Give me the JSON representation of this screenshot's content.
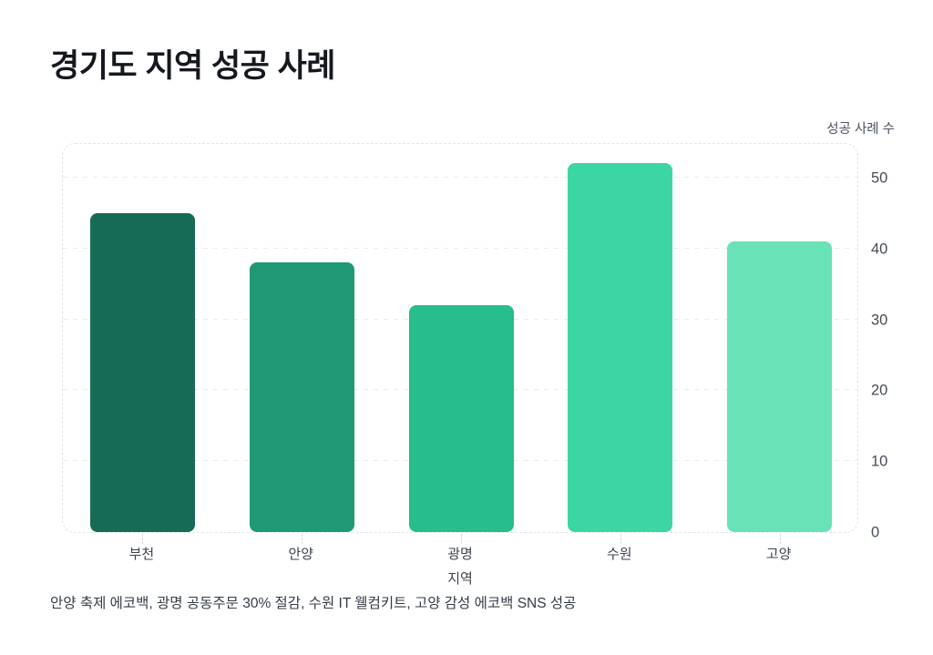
{
  "page": {
    "title": "경기도 지역 성공 사례",
    "caption": "안양 축제 에코백, 광명 공동주문 30% 절감, 수원 IT 웰컴키트, 고양 감성 에코백 SNS 성공"
  },
  "chart_data": {
    "type": "bar",
    "title": "경기도 지역 성공 사례",
    "categories": [
      "부천",
      "안양",
      "광명",
      "수원",
      "고양"
    ],
    "values": [
      45,
      38,
      32,
      52,
      41
    ],
    "xlabel": "지역",
    "ylabel": "성공 사례 수",
    "ylim": [
      0,
      55
    ],
    "yticks": [
      0,
      10,
      20,
      30,
      40,
      50
    ],
    "grid": "horizontal-dashed",
    "legend": "none",
    "y_axis_side": "right",
    "bar_colors": [
      "#166b56",
      "#1f9a75",
      "#27bd8d",
      "#3bd6a4",
      "#69e2b8"
    ],
    "annotation": "안양 축제 에코백, 광명 공동주문 30% 절감, 수원 IT 웰컴키트, 고양 감성 에코백 SNS 성공"
  }
}
